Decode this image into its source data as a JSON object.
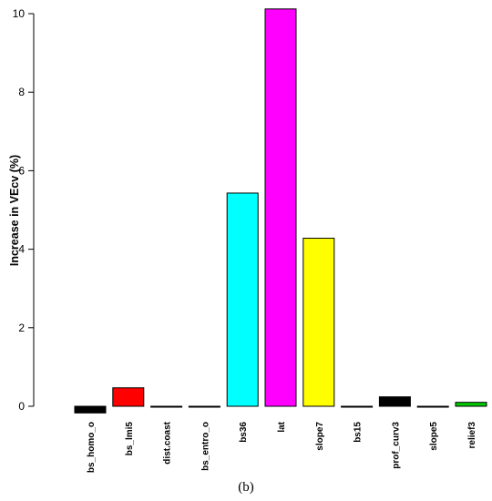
{
  "panel_label": "(b)",
  "chart_data": {
    "type": "bar",
    "ylabel": "Increase in VEcv (%)",
    "xlabel": "",
    "ylim": [
      -0.2,
      10.2
    ],
    "yticks": [
      0,
      2,
      4,
      6,
      8,
      10
    ],
    "yticklabels": [
      "0",
      "2",
      "4",
      "6",
      "8",
      "10"
    ],
    "categories": [
      "bs_homo_o",
      "bs_lmi5",
      "dist.coast",
      "bs_entro_o",
      "bs36",
      "lat",
      "slope7",
      "bs15",
      "prof_curv3",
      "slope5",
      "relief3"
    ],
    "values": [
      -0.17,
      0.47,
      -0.02,
      0.0,
      5.43,
      10.12,
      4.28,
      0.0,
      0.24,
      0.0,
      0.1
    ],
    "colors": [
      "#000000",
      "#ff0000",
      "#000000",
      "#000000",
      "#00ffff",
      "#ff00ff",
      "#ffff00",
      "#000000",
      "#000000",
      "#000000",
      "#00c800"
    ]
  }
}
